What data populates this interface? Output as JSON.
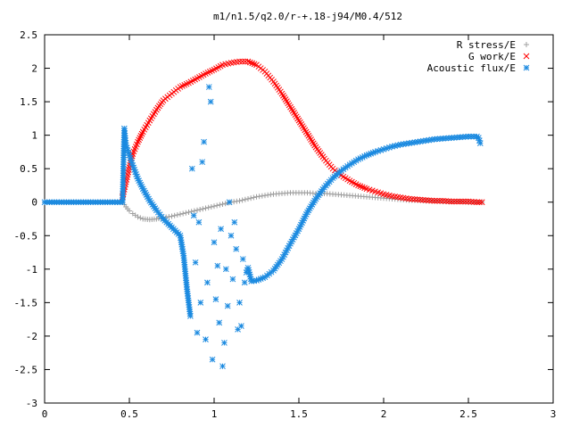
{
  "chart_data": {
    "type": "scatter",
    "title": "m1/n1.5/q2.0/r-+.18-j94/M0.4/512",
    "xlabel": "",
    "ylabel": "",
    "xlim": [
      0,
      3
    ],
    "ylim": [
      -3,
      2.5
    ],
    "x_ticks": [
      0,
      0.5,
      1,
      1.5,
      2,
      2.5,
      3
    ],
    "y_ticks": [
      -3,
      -2.5,
      -2,
      -1.5,
      -1,
      -0.5,
      0,
      0.5,
      1,
      1.5,
      2,
      2.5
    ],
    "x_tick_labels": [
      "0",
      "0.5",
      "1",
      "1.5",
      "2",
      "2.5",
      "3"
    ],
    "y_tick_labels": [
      "-3",
      "-2.5",
      "-2",
      "-1.5",
      "-1",
      "-0.5",
      "0",
      "0.5",
      "1",
      "1.5",
      "2",
      "2.5"
    ],
    "grid": false,
    "legend_position": "top-right",
    "series": [
      {
        "name": "R stress/E",
        "marker": "plus",
        "color": "#a0a0a0",
        "x": [
          0.0,
          0.1,
          0.2,
          0.3,
          0.4,
          0.46,
          0.48,
          0.5,
          0.52,
          0.55,
          0.58,
          0.62,
          0.66,
          0.7,
          0.75,
          0.8,
          0.85,
          0.9,
          0.95,
          1.0,
          1.05,
          1.1,
          1.15,
          1.2,
          1.25,
          1.3,
          1.35,
          1.4,
          1.45,
          1.5,
          1.55,
          1.6,
          1.65,
          1.7,
          1.75,
          1.8,
          1.85,
          1.9,
          1.95,
          2.0,
          2.05,
          2.1,
          2.15,
          2.2,
          2.25,
          2.3,
          2.35,
          2.4,
          2.45,
          2.5,
          2.55,
          2.58
        ],
        "y": [
          0.0,
          0.0,
          0.0,
          0.0,
          0.0,
          0.0,
          -0.07,
          -0.13,
          -0.17,
          -0.22,
          -0.25,
          -0.26,
          -0.25,
          -0.23,
          -0.21,
          -0.18,
          -0.15,
          -0.12,
          -0.09,
          -0.06,
          -0.03,
          0.0,
          0.02,
          0.05,
          0.08,
          0.1,
          0.12,
          0.13,
          0.14,
          0.14,
          0.14,
          0.13,
          0.13,
          0.12,
          0.11,
          0.1,
          0.09,
          0.08,
          0.07,
          0.06,
          0.05,
          0.04,
          0.03,
          0.03,
          0.02,
          0.02,
          0.01,
          0.01,
          0.01,
          0.0,
          0.0,
          0.0
        ]
      },
      {
        "name": "G work/E",
        "marker": "cross",
        "color": "#ff0000",
        "x": [
          0.46,
          0.48,
          0.5,
          0.52,
          0.55,
          0.58,
          0.62,
          0.66,
          0.7,
          0.75,
          0.8,
          0.85,
          0.9,
          0.95,
          1.0,
          1.05,
          1.1,
          1.15,
          1.2,
          1.25,
          1.3,
          1.35,
          1.4,
          1.45,
          1.5,
          1.55,
          1.6,
          1.65,
          1.7,
          1.75,
          1.8,
          1.85,
          1.9,
          1.95,
          2.0,
          2.05,
          2.1,
          2.15,
          2.2,
          2.25,
          2.3,
          2.35,
          2.4,
          2.45,
          2.5,
          2.55,
          2.58
        ],
        "y": [
          0.08,
          0.3,
          0.52,
          0.72,
          0.9,
          1.05,
          1.22,
          1.38,
          1.52,
          1.62,
          1.72,
          1.78,
          1.85,
          1.92,
          1.98,
          2.05,
          2.08,
          2.1,
          2.1,
          2.05,
          1.95,
          1.8,
          1.62,
          1.42,
          1.22,
          1.02,
          0.82,
          0.65,
          0.5,
          0.4,
          0.32,
          0.25,
          0.2,
          0.16,
          0.12,
          0.09,
          0.07,
          0.05,
          0.04,
          0.03,
          0.02,
          0.02,
          0.01,
          0.01,
          0.01,
          0.0,
          0.0
        ]
      },
      {
        "name": "Acoustic flux/E",
        "marker": "star",
        "color": "#1b8ae0",
        "x": [
          0.0,
          0.1,
          0.2,
          0.3,
          0.4,
          0.46,
          0.47,
          0.48,
          0.5,
          0.52,
          0.55,
          0.58,
          0.62,
          0.66,
          0.7,
          0.74,
          0.78,
          0.8,
          0.82,
          0.84,
          0.86,
          0.87,
          0.88,
          0.89,
          0.9,
          0.91,
          0.92,
          0.93,
          0.94,
          0.95,
          0.96,
          0.97,
          0.98,
          0.99,
          1.0,
          1.01,
          1.02,
          1.03,
          1.04,
          1.05,
          1.06,
          1.07,
          1.08,
          1.09,
          1.1,
          1.11,
          1.12,
          1.13,
          1.14,
          1.15,
          1.16,
          1.17,
          1.18,
          1.19,
          1.2,
          1.22,
          1.25,
          1.3,
          1.35,
          1.4,
          1.45,
          1.5,
          1.55,
          1.6,
          1.65,
          1.7,
          1.75,
          1.8,
          1.85,
          1.9,
          1.95,
          2.0,
          2.05,
          2.1,
          2.15,
          2.2,
          2.25,
          2.3,
          2.35,
          2.4,
          2.45,
          2.5,
          2.55,
          2.56,
          2.57
        ],
        "y": [
          0.0,
          0.0,
          0.0,
          0.0,
          0.0,
          0.0,
          1.1,
          0.85,
          0.7,
          0.55,
          0.35,
          0.2,
          0.02,
          -0.12,
          -0.25,
          -0.35,
          -0.45,
          -0.5,
          -0.8,
          -1.3,
          -1.7,
          0.5,
          -0.2,
          -0.9,
          -1.95,
          -0.3,
          -1.5,
          0.6,
          0.9,
          -2.05,
          -1.2,
          1.72,
          1.5,
          -2.35,
          -0.6,
          -1.45,
          -0.95,
          -1.8,
          -0.4,
          -2.45,
          -2.1,
          -1.0,
          -1.55,
          0.0,
          -0.5,
          -1.15,
          -0.3,
          -0.7,
          -1.9,
          -1.5,
          -1.85,
          -0.85,
          -1.2,
          -1.05,
          -0.98,
          -1.18,
          -1.17,
          -1.12,
          -1.02,
          -0.85,
          -0.62,
          -0.4,
          -0.15,
          0.05,
          0.22,
          0.36,
          0.47,
          0.56,
          0.64,
          0.7,
          0.75,
          0.79,
          0.83,
          0.86,
          0.88,
          0.9,
          0.92,
          0.94,
          0.95,
          0.96,
          0.97,
          0.98,
          0.98,
          0.96,
          0.88
        ]
      }
    ]
  }
}
